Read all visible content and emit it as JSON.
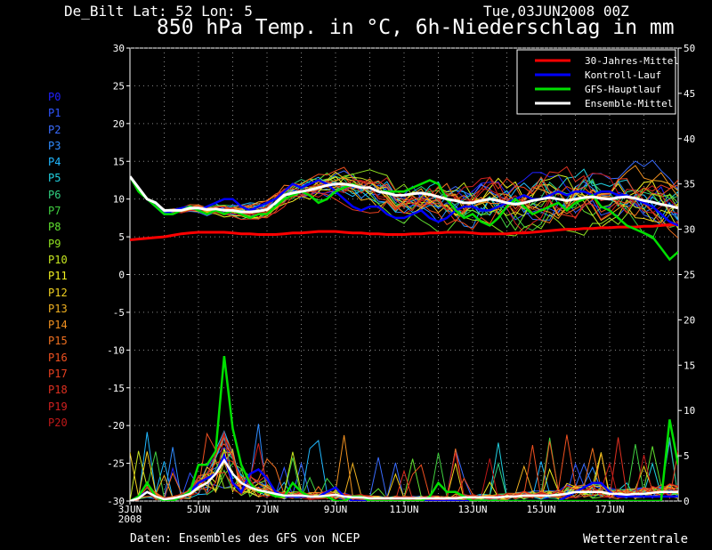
{
  "header": {
    "station": "De_Bilt   Lat: 52 Lon: 5",
    "run_date": "Tue,03JUN2008 00Z",
    "title": "850 hPa Temp. in °C, 6h-Niederschlag in mm"
  },
  "footer": {
    "source": "Daten: Ensembles des GFS von NCEP",
    "brand": "Wetterzentrale"
  },
  "members": [
    {
      "label": "P0",
      "color": "#2020ff"
    },
    {
      "label": "P1",
      "color": "#2f55ff"
    },
    {
      "label": "P2",
      "color": "#3a6cff"
    },
    {
      "label": "P3",
      "color": "#2f8cff"
    },
    {
      "label": "P4",
      "color": "#20b8ff"
    },
    {
      "label": "P5",
      "color": "#20d0e0"
    },
    {
      "label": "P6",
      "color": "#30d080"
    },
    {
      "label": "P7",
      "color": "#40d040"
    },
    {
      "label": "P8",
      "color": "#60e030"
    },
    {
      "label": "P9",
      "color": "#90e020"
    },
    {
      "label": "P10",
      "color": "#c8e820"
    },
    {
      "label": "P11",
      "color": "#f0f020"
    },
    {
      "label": "P12",
      "color": "#f0d020"
    },
    {
      "label": "P13",
      "color": "#f0b020"
    },
    {
      "label": "P14",
      "color": "#f09020"
    },
    {
      "label": "P15",
      "color": "#f07020"
    },
    {
      "label": "P16",
      "color": "#f05020"
    },
    {
      "label": "P17",
      "color": "#e84020"
    },
    {
      "label": "P18",
      "color": "#e03020"
    },
    {
      "label": "P19",
      "color": "#d02020"
    },
    {
      "label": "P20",
      "color": "#c01818"
    }
  ],
  "chart_data": {
    "type": "line",
    "x_tick_labels": [
      "3JUN",
      "5JUN",
      "7JUN",
      "9JUN",
      "11JUN",
      "13JUN",
      "15JUN",
      "17JUN"
    ],
    "x_sub_label": "2008",
    "x_range_days": [
      3,
      19
    ],
    "left_axis": {
      "label": "850 hPa Temp. in °C",
      "ylim": [
        -30,
        30
      ],
      "ticks": [
        30,
        25,
        20,
        15,
        10,
        5,
        0,
        -5,
        -10,
        -15,
        -20,
        -25,
        -30
      ]
    },
    "right_axis": {
      "label": "6h-Niederschlag in mm",
      "ylim": [
        0,
        50
      ],
      "ticks": [
        50,
        45,
        40,
        35,
        30,
        25,
        20,
        15,
        10,
        5,
        0
      ]
    },
    "grid": true,
    "legend": {
      "placement": "top-right",
      "entries": [
        {
          "name": "30-Jahres-Mittel",
          "color": "#ff0000"
        },
        {
          "name": "Kontroll-Lauf",
          "color": "#0000ff"
        },
        {
          "name": "GFS-Hauptlauf",
          "color": "#00e000"
        },
        {
          "name": "Ensemble-Mittel",
          "color": "#ffffff"
        }
      ]
    },
    "x_days": [
      3,
      3.25,
      3.5,
      3.75,
      4,
      4.25,
      4.5,
      4.75,
      5,
      5.25,
      5.5,
      5.75,
      6,
      6.25,
      6.5,
      6.75,
      7,
      7.25,
      7.5,
      7.75,
      8,
      8.25,
      8.5,
      8.75,
      9,
      9.25,
      9.5,
      9.75,
      10,
      10.25,
      10.5,
      10.75,
      11,
      11.25,
      11.5,
      11.75,
      12,
      12.25,
      12.5,
      12.75,
      13,
      13.25,
      13.5,
      13.75,
      14,
      14.25,
      14.5,
      14.75,
      15,
      15.25,
      15.5,
      15.75,
      16,
      16.25,
      16.5,
      16.75,
      17,
      17.25,
      17.5,
      17.75,
      18,
      18.25,
      18.5,
      18.75,
      19
    ],
    "temp_series": {
      "climatology_30yr": [
        4.6,
        4.7,
        4.8,
        4.9,
        5.0,
        5.2,
        5.4,
        5.5,
        5.6,
        5.6,
        5.6,
        5.6,
        5.5,
        5.4,
        5.4,
        5.3,
        5.3,
        5.3,
        5.4,
        5.5,
        5.5,
        5.6,
        5.7,
        5.7,
        5.7,
        5.6,
        5.5,
        5.5,
        5.4,
        5.4,
        5.3,
        5.3,
        5.3,
        5.4,
        5.4,
        5.5,
        5.5,
        5.6,
        5.6,
        5.6,
        5.5,
        5.4,
        5.4,
        5.4,
        5.4,
        5.5,
        5.5,
        5.6,
        5.7,
        5.8,
        5.9,
        6.0,
        6.0,
        6.1,
        6.1,
        6.2,
        6.2,
        6.3,
        6.3,
        6.3,
        6.4,
        6.4,
        6.5,
        6.6,
        6.6
      ],
      "control_run": [
        13,
        11.5,
        10,
        9,
        8,
        8.5,
        8.8,
        9,
        8.5,
        9,
        9.5,
        10,
        10,
        9,
        8.5,
        9,
        9.5,
        10,
        11,
        12,
        11.5,
        12,
        12.5,
        12,
        11,
        10,
        9,
        8.5,
        9,
        9,
        8,
        7.5,
        7.5,
        8,
        8.5,
        7.5,
        7,
        7.5,
        8.5,
        9,
        9,
        8.5,
        8.5,
        9,
        9.5,
        10,
        10.5,
        10,
        10,
        10.5,
        11,
        10.5,
        11,
        11,
        10.5,
        11,
        11,
        10.5,
        10.5,
        10,
        9.5,
        9,
        8,
        7,
        6.5
      ],
      "gfs_main_run": [
        13,
        11,
        10,
        9,
        8,
        8,
        8.5,
        9,
        8.5,
        8,
        8.5,
        8,
        8.5,
        8,
        7.5,
        8,
        8,
        9,
        10,
        10.5,
        11,
        10.5,
        9.5,
        10,
        11,
        11.5,
        12,
        11.5,
        11.5,
        11,
        11,
        11,
        11,
        11.5,
        12,
        12.5,
        12,
        10,
        8.5,
        7.5,
        8,
        7,
        6.5,
        7.5,
        9,
        10,
        9,
        8,
        8.5,
        9,
        9.5,
        8.5,
        9.5,
        10,
        10.5,
        9,
        8.5,
        7.5,
        6.5,
        6,
        5.5,
        5,
        3.5,
        2,
        3
      ],
      "ensemble_mean": [
        13,
        11.5,
        10,
        9.5,
        8.5,
        8.5,
        8.5,
        8.8,
        8.8,
        8.6,
        8.7,
        8.5,
        8.5,
        8.3,
        8.3,
        8.4,
        8.6,
        9.5,
        10.5,
        10.8,
        11,
        11.2,
        11.5,
        11.8,
        12,
        12,
        11.8,
        11.5,
        11.5,
        11,
        10.8,
        10.5,
        10.5,
        10.7,
        10.8,
        10.6,
        10.3,
        10,
        9.8,
        9.5,
        9.5,
        9.8,
        10,
        9.8,
        9.5,
        9.3,
        9.5,
        9.8,
        10,
        10.2,
        10,
        9.8,
        10,
        10.2,
        10.3,
        10.1,
        10,
        10.2,
        10.3,
        10.1,
        9.8,
        9.6,
        9.3,
        9.1,
        8.8
      ]
    },
    "precip_series": {
      "gfs_main_run": [
        0,
        0.5,
        2,
        0.5,
        0,
        0,
        0.5,
        1,
        4,
        4,
        5.5,
        16,
        8,
        4,
        2,
        1,
        1,
        0.5,
        0.5,
        2,
        1,
        0.5,
        0.5,
        0.5,
        0,
        0,
        0.5,
        0.5,
        0,
        0,
        0,
        0,
        0,
        0,
        0,
        0.5,
        2,
        1,
        1,
        0.5,
        0,
        0,
        0,
        0,
        0,
        0,
        0,
        0,
        0,
        0,
        0,
        0,
        0,
        0,
        0,
        0,
        0,
        0,
        0,
        0,
        0,
        0,
        0,
        9,
        4
      ],
      "control_run": [
        0,
        0.5,
        1,
        0.5,
        0,
        0,
        0.5,
        1,
        2,
        2.5,
        3,
        5,
        2,
        1,
        3,
        3.5,
        2.5,
        1,
        0.5,
        0.5,
        0.5,
        0.5,
        0.5,
        1,
        1.5,
        0.5,
        0,
        0,
        0,
        0,
        0,
        0,
        0,
        0,
        0,
        0,
        0,
        0,
        0,
        0,
        0,
        0,
        0,
        0,
        0,
        0,
        0,
        0,
        0,
        0,
        0,
        0.5,
        1,
        1.5,
        2,
        2,
        1,
        0.5,
        0.5,
        0.5,
        0.5,
        0.5,
        0.5,
        0.5,
        0.5
      ],
      "ensemble_mean": [
        0,
        0.3,
        1,
        0.5,
        0.2,
        0.3,
        0.5,
        0.8,
        1.5,
        2,
        3,
        4.5,
        3,
        2,
        1.5,
        1.2,
        1,
        0.8,
        0.6,
        0.6,
        0.6,
        0.5,
        0.5,
        0.6,
        0.7,
        0.5,
        0.4,
        0.4,
        0.3,
        0.3,
        0.3,
        0.3,
        0.3,
        0.3,
        0.3,
        0.3,
        0.3,
        0.3,
        0.3,
        0.4,
        0.4,
        0.4,
        0.4,
        0.4,
        0.5,
        0.5,
        0.6,
        0.6,
        0.6,
        0.6,
        0.7,
        0.8,
        1,
        1,
        1,
        1,
        0.8,
        0.8,
        0.7,
        0.8,
        0.8,
        0.9,
        1,
        1,
        1
      ]
    }
  }
}
